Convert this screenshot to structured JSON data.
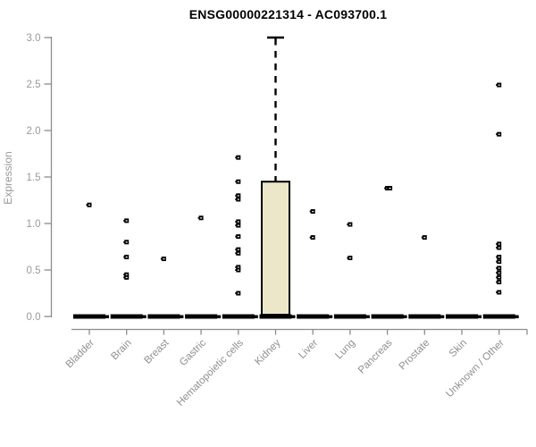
{
  "chart_data": {
    "type": "boxplot",
    "title": "ENSG00000221314 - AC093700.1",
    "ylabel": "Expression",
    "xlabel": "",
    "ylim": [
      0.0,
      3.0
    ],
    "ytick_labels": [
      "0.0",
      "0.5",
      "1.0",
      "1.5",
      "2.0",
      "2.5",
      "3.0"
    ],
    "ytick_values": [
      0.0,
      0.5,
      1.0,
      1.5,
      2.0,
      2.5,
      3.0
    ],
    "grid": false,
    "legend": "none",
    "categories": [
      "Bladder",
      "Brain",
      "Breast",
      "Gastric",
      "Hematopoietic cells",
      "Kidney",
      "Liver",
      "Lung",
      "Pancreas",
      "Prostate",
      "Skin",
      "Unknown / Other"
    ],
    "groups": [
      {
        "category": "Bladder",
        "median": 0,
        "q1": 0,
        "q3": 0,
        "whisker_low": 0,
        "whisker_high": 0,
        "outliers": [
          1.2
        ]
      },
      {
        "category": "Brain",
        "median": 0,
        "q1": 0,
        "q3": 0,
        "whisker_low": 0,
        "whisker_high": 0,
        "outliers": [
          1.03,
          0.8,
          0.64,
          0.45,
          0.42
        ]
      },
      {
        "category": "Breast",
        "median": 0,
        "q1": 0,
        "q3": 0,
        "whisker_low": 0,
        "whisker_high": 0,
        "outliers": [
          0.62
        ]
      },
      {
        "category": "Gastric",
        "median": 0,
        "q1": 0,
        "q3": 0,
        "whisker_low": 0,
        "whisker_high": 0,
        "outliers": [
          1.06
        ]
      },
      {
        "category": "Hematopoietic cells",
        "median": 0,
        "q1": 0,
        "q3": 0,
        "whisker_low": 0,
        "whisker_high": 0,
        "outliers": [
          1.71,
          1.45,
          1.3,
          1.26,
          1.02,
          0.98,
          0.86,
          0.72,
          0.68,
          0.53,
          0.5,
          0.25
        ]
      },
      {
        "category": "Kidney",
        "median": 0,
        "q1": 0,
        "q3": 1.45,
        "whisker_low": 0,
        "whisker_high": 3.0,
        "outliers": []
      },
      {
        "category": "Liver",
        "median": 0,
        "q1": 0,
        "q3": 0,
        "whisker_low": 0,
        "whisker_high": 0,
        "outliers": [
          1.13,
          0.85
        ]
      },
      {
        "category": "Lung",
        "median": 0,
        "q1": 0,
        "q3": 0,
        "whisker_low": 0,
        "whisker_high": 0,
        "outliers": [
          0.99,
          0.63
        ]
      },
      {
        "category": "Pancreas",
        "median": 0,
        "q1": 0,
        "q3": 0,
        "whisker_low": 0,
        "whisker_high": 0,
        "outliers": [
          1.38,
          1.38
        ]
      },
      {
        "category": "Prostate",
        "median": 0,
        "q1": 0,
        "q3": 0,
        "whisker_low": 0,
        "whisker_high": 0,
        "outliers": [
          0.85
        ]
      },
      {
        "category": "Skin",
        "median": 0,
        "q1": 0,
        "q3": 0,
        "whisker_low": 0,
        "whisker_high": 0,
        "outliers": []
      },
      {
        "category": "Unknown / Other",
        "median": 0,
        "q1": 0,
        "q3": 0,
        "whisker_low": 0,
        "whisker_high": 0,
        "outliers": [
          2.49,
          1.96,
          0.78,
          0.74,
          0.64,
          0.59,
          0.52,
          0.47,
          0.42,
          0.37,
          0.26
        ]
      }
    ],
    "colors": {
      "box_fill": "#ece7c9",
      "box_border": "#000000",
      "axis_line": "#8c8c8c",
      "tick_label": "#999999",
      "category_label": "#8f8f8f",
      "point": "#000000",
      "zero_bar": "#000000",
      "title": "#000000",
      "background": "#ffffff"
    }
  }
}
